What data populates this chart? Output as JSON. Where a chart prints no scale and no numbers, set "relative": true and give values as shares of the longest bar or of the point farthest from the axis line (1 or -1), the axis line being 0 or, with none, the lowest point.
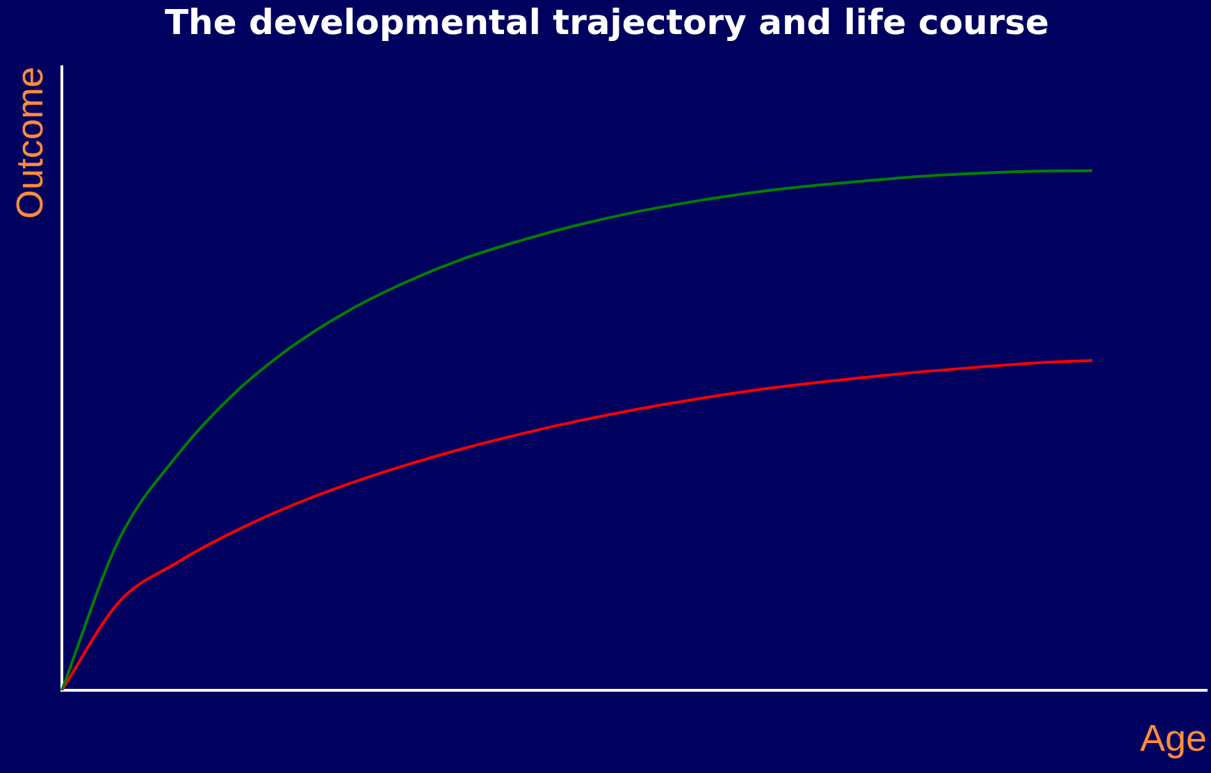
{
  "chart_data": {
    "type": "line",
    "title": "The developmental trajectory and life course",
    "xlabel": "Age",
    "ylabel": "Outcome",
    "relative": true,
    "grid": false,
    "legend": false,
    "marker": "none",
    "line_style": "solid",
    "categories": [
      null,
      null,
      null,
      null,
      null,
      null,
      null,
      null,
      null,
      null,
      null,
      null,
      null,
      null,
      null,
      null,
      null,
      null,
      null,
      null,
      null
    ],
    "series": [
      {
        "color": "#008000",
        "values": [
          0,
          0.29,
          0.45,
          0.57,
          0.66,
          0.73,
          0.785,
          0.83,
          0.865,
          0.895,
          0.92,
          0.94,
          0.957,
          0.97,
          0.98,
          0.989,
          0.995,
          0.999,
          1,
          null,
          null
        ]
      },
      {
        "color": "#ff0000",
        "values": [
          0,
          0.17,
          0.245,
          0.305,
          0.355,
          0.397,
          0.433,
          0.465,
          0.493,
          0.518,
          0.54,
          0.559,
          0.576,
          0.59,
          0.602,
          0.613,
          0.622,
          0.63,
          0.635,
          null,
          null
        ]
      }
    ]
  }
}
